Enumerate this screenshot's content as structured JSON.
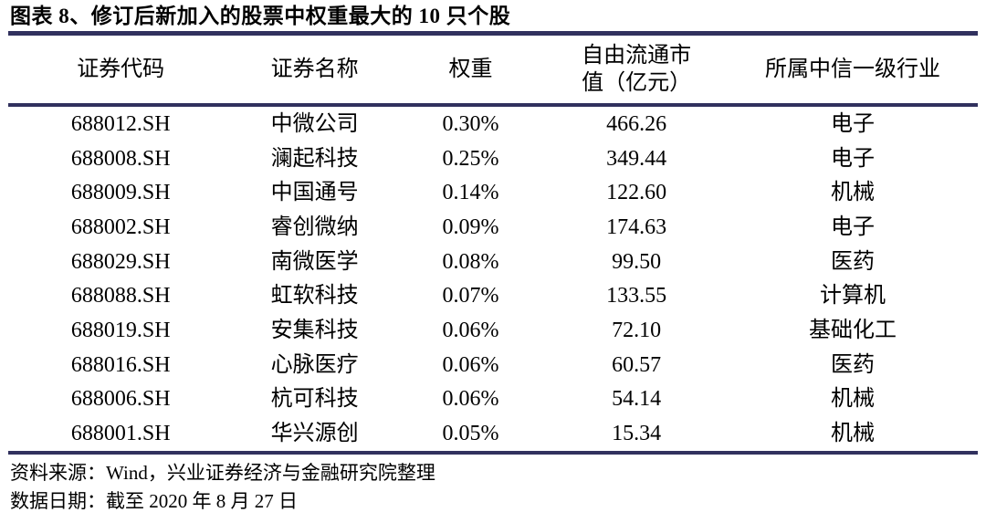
{
  "title": "图表 8、修订后新加入的股票中权重最大的 10 只个股",
  "table": {
    "headers": [
      {
        "label": "证券代码"
      },
      {
        "label": "证券名称"
      },
      {
        "label": "权重"
      },
      {
        "label": "自由流通市\n值（亿元）"
      },
      {
        "label": "所属中信一级行业"
      }
    ],
    "rows": [
      {
        "code": "688012.SH",
        "name": "中微公司",
        "weight": "0.30%",
        "mcap": "466.26",
        "industry": "电子"
      },
      {
        "code": "688008.SH",
        "name": "澜起科技",
        "weight": "0.25%",
        "mcap": "349.44",
        "industry": "电子"
      },
      {
        "code": "688009.SH",
        "name": "中国通号",
        "weight": "0.14%",
        "mcap": "122.60",
        "industry": "机械"
      },
      {
        "code": "688002.SH",
        "name": "睿创微纳",
        "weight": "0.09%",
        "mcap": "174.63",
        "industry": "电子"
      },
      {
        "code": "688029.SH",
        "name": "南微医学",
        "weight": "0.08%",
        "mcap": "99.50",
        "industry": "医药"
      },
      {
        "code": "688088.SH",
        "name": "虹软科技",
        "weight": "0.07%",
        "mcap": "133.55",
        "industry": "计算机"
      },
      {
        "code": "688019.SH",
        "name": "安集科技",
        "weight": "0.06%",
        "mcap": "72.10",
        "industry": "基础化工"
      },
      {
        "code": "688016.SH",
        "name": "心脉医疗",
        "weight": "0.06%",
        "mcap": "60.57",
        "industry": "医药"
      },
      {
        "code": "688006.SH",
        "name": "杭可科技",
        "weight": "0.06%",
        "mcap": "54.14",
        "industry": "机械"
      },
      {
        "code": "688001.SH",
        "name": "华兴源创",
        "weight": "0.05%",
        "mcap": "15.34",
        "industry": "机械"
      }
    ]
  },
  "footer": {
    "source": "资料来源：Wind，兴业证券经济与金融研究院整理",
    "date": "数据日期：截至 2020 年 8 月 27 日"
  },
  "colors": {
    "rule": "#31315e",
    "text": "#000000"
  }
}
